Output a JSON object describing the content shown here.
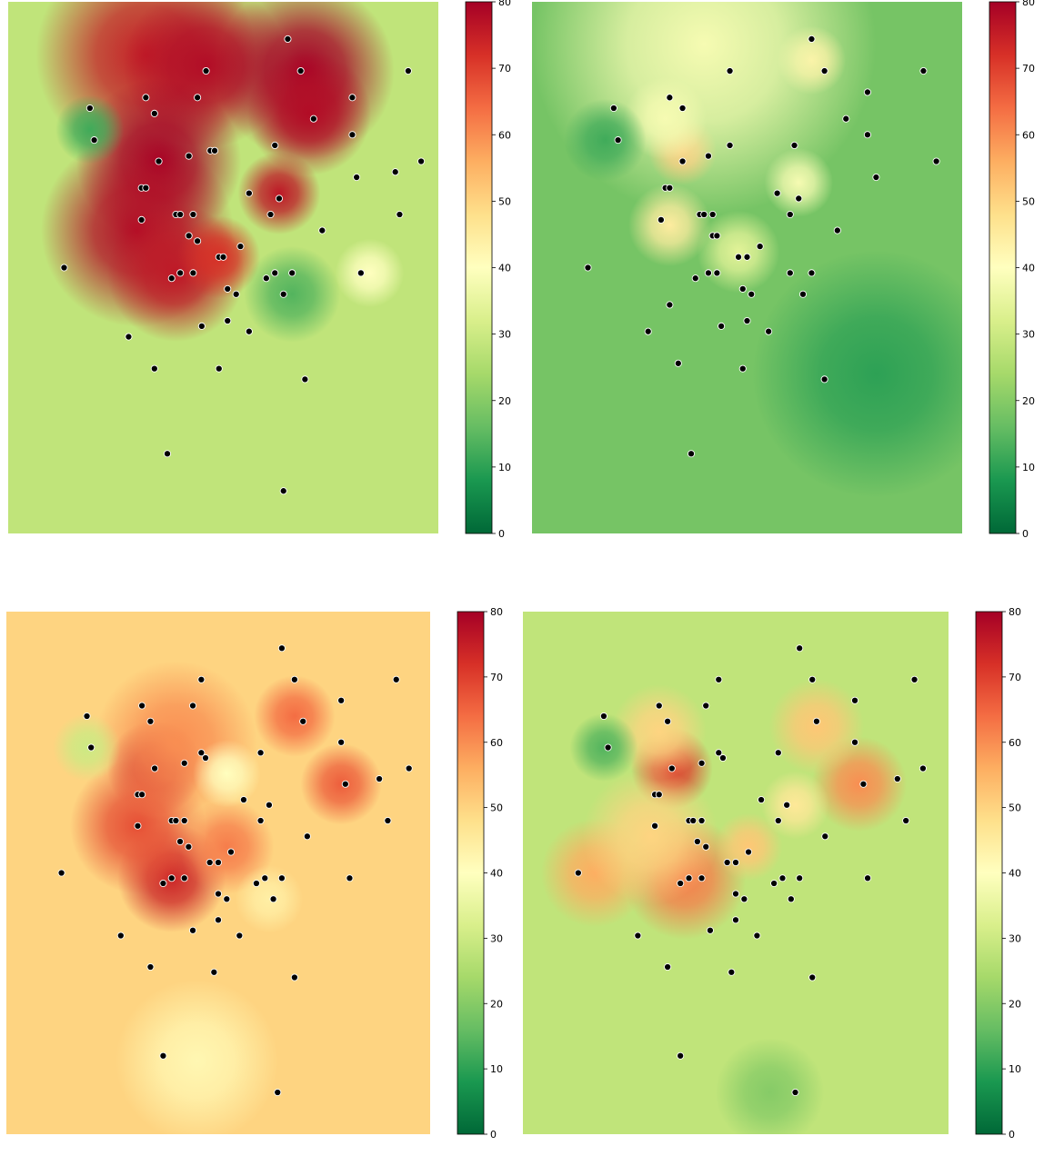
{
  "figure": {
    "colormap": "RdYlGn_r",
    "colorbar_ticks": [
      "0",
      "10",
      "20",
      "30",
      "40",
      "50",
      "60",
      "70",
      "80"
    ],
    "colorbar_range": [
      0,
      80
    ]
  },
  "chart_data": [
    {
      "type": "heatmap",
      "panel": "top-left",
      "title": "",
      "xlabel": "",
      "ylabel": "",
      "value_range": [
        0,
        80
      ],
      "background_value": 28,
      "hotspots": [
        {
          "x": 0.32,
          "y": 0.1,
          "v": 75,
          "r": 0.16
        },
        {
          "x": 0.46,
          "y": 0.12,
          "v": 78,
          "r": 0.12
        },
        {
          "x": 0.69,
          "y": 0.13,
          "v": 80,
          "r": 0.13
        },
        {
          "x": 0.7,
          "y": 0.21,
          "v": 78,
          "r": 0.09
        },
        {
          "x": 0.35,
          "y": 0.3,
          "v": 80,
          "r": 0.12
        },
        {
          "x": 0.63,
          "y": 0.36,
          "v": 76,
          "r": 0.06
        },
        {
          "x": 0.3,
          "y": 0.43,
          "v": 78,
          "r": 0.14
        },
        {
          "x": 0.39,
          "y": 0.51,
          "v": 76,
          "r": 0.1
        },
        {
          "x": 0.49,
          "y": 0.48,
          "v": 72,
          "r": 0.06
        },
        {
          "x": 0.19,
          "y": 0.24,
          "v": 12,
          "r": 0.05
        },
        {
          "x": 0.66,
          "y": 0.55,
          "v": 14,
          "r": 0.07
        },
        {
          "x": 0.84,
          "y": 0.51,
          "v": 40,
          "r": 0.05
        }
      ],
      "points": [
        [
          0.65,
          0.07
        ],
        [
          0.46,
          0.13
        ],
        [
          0.68,
          0.13
        ],
        [
          0.93,
          0.13
        ],
        [
          0.32,
          0.18
        ],
        [
          0.44,
          0.18
        ],
        [
          0.8,
          0.18
        ],
        [
          0.19,
          0.2
        ],
        [
          0.34,
          0.21
        ],
        [
          0.71,
          0.22
        ],
        [
          0.2,
          0.26
        ],
        [
          0.8,
          0.25
        ],
        [
          0.47,
          0.28
        ],
        [
          0.48,
          0.28
        ],
        [
          0.62,
          0.27
        ],
        [
          0.35,
          0.3
        ],
        [
          0.42,
          0.29
        ],
        [
          0.9,
          0.32
        ],
        [
          0.96,
          0.3
        ],
        [
          0.81,
          0.33
        ],
        [
          0.31,
          0.35
        ],
        [
          0.32,
          0.35
        ],
        [
          0.56,
          0.36
        ],
        [
          0.63,
          0.37
        ],
        [
          0.39,
          0.4
        ],
        [
          0.4,
          0.4
        ],
        [
          0.43,
          0.4
        ],
        [
          0.61,
          0.4
        ],
        [
          0.91,
          0.4
        ],
        [
          0.31,
          0.41
        ],
        [
          0.73,
          0.43
        ],
        [
          0.42,
          0.44
        ],
        [
          0.44,
          0.45
        ],
        [
          0.54,
          0.46
        ],
        [
          0.49,
          0.48
        ],
        [
          0.5,
          0.48
        ],
        [
          0.13,
          0.5
        ],
        [
          0.4,
          0.51
        ],
        [
          0.43,
          0.51
        ],
        [
          0.38,
          0.52
        ],
        [
          0.6,
          0.52
        ],
        [
          0.62,
          0.51
        ],
        [
          0.66,
          0.51
        ],
        [
          0.82,
          0.51
        ],
        [
          0.51,
          0.54
        ],
        [
          0.53,
          0.55
        ],
        [
          0.64,
          0.55
        ],
        [
          0.51,
          0.6
        ],
        [
          0.45,
          0.61
        ],
        [
          0.56,
          0.62
        ],
        [
          0.28,
          0.63
        ],
        [
          0.34,
          0.69
        ],
        [
          0.49,
          0.69
        ],
        [
          0.69,
          0.71
        ],
        [
          0.37,
          0.85
        ],
        [
          0.64,
          0.92
        ]
      ]
    },
    {
      "type": "heatmap",
      "panel": "top-right",
      "title": "",
      "xlabel": "",
      "ylabel": "",
      "value_range": [
        0,
        80
      ],
      "background_value": 18,
      "hotspots": [
        {
          "x": 0.35,
          "y": 0.28,
          "v": 55,
          "r": 0.05
        },
        {
          "x": 0.32,
          "y": 0.42,
          "v": 45,
          "r": 0.06
        },
        {
          "x": 0.31,
          "y": 0.22,
          "v": 38,
          "r": 0.06
        },
        {
          "x": 0.65,
          "y": 0.11,
          "v": 45,
          "r": 0.05
        },
        {
          "x": 0.4,
          "y": 0.08,
          "v": 38,
          "r": 0.25
        },
        {
          "x": 0.62,
          "y": 0.34,
          "v": 38,
          "r": 0.05
        },
        {
          "x": 0.48,
          "y": 0.47,
          "v": 34,
          "r": 0.06
        },
        {
          "x": 0.17,
          "y": 0.26,
          "v": 12,
          "r": 0.06
        },
        {
          "x": 0.8,
          "y": 0.7,
          "v": 10,
          "r": 0.18
        }
      ],
      "points": [
        [
          0.65,
          0.07
        ],
        [
          0.46,
          0.13
        ],
        [
          0.68,
          0.13
        ],
        [
          0.91,
          0.13
        ],
        [
          0.32,
          0.18
        ],
        [
          0.35,
          0.2
        ],
        [
          0.78,
          0.17
        ],
        [
          0.19,
          0.2
        ],
        [
          0.73,
          0.22
        ],
        [
          0.78,
          0.25
        ],
        [
          0.2,
          0.26
        ],
        [
          0.61,
          0.27
        ],
        [
          0.46,
          0.27
        ],
        [
          0.41,
          0.29
        ],
        [
          0.35,
          0.3
        ],
        [
          0.8,
          0.33
        ],
        [
          0.94,
          0.3
        ],
        [
          0.31,
          0.35
        ],
        [
          0.32,
          0.35
        ],
        [
          0.57,
          0.36
        ],
        [
          0.62,
          0.37
        ],
        [
          0.6,
          0.4
        ],
        [
          0.39,
          0.4
        ],
        [
          0.4,
          0.4
        ],
        [
          0.42,
          0.4
        ],
        [
          0.3,
          0.41
        ],
        [
          0.71,
          0.43
        ],
        [
          0.42,
          0.44
        ],
        [
          0.43,
          0.44
        ],
        [
          0.53,
          0.46
        ],
        [
          0.48,
          0.48
        ],
        [
          0.5,
          0.48
        ],
        [
          0.13,
          0.5
        ],
        [
          0.38,
          0.52
        ],
        [
          0.41,
          0.51
        ],
        [
          0.43,
          0.51
        ],
        [
          0.6,
          0.51
        ],
        [
          0.65,
          0.51
        ],
        [
          0.49,
          0.54
        ],
        [
          0.51,
          0.55
        ],
        [
          0.63,
          0.55
        ],
        [
          0.32,
          0.57
        ],
        [
          0.5,
          0.6
        ],
        [
          0.44,
          0.61
        ],
        [
          0.55,
          0.62
        ],
        [
          0.27,
          0.62
        ],
        [
          0.34,
          0.68
        ],
        [
          0.49,
          0.69
        ],
        [
          0.68,
          0.71
        ],
        [
          0.37,
          0.85
        ]
      ]
    },
    {
      "type": "heatmap",
      "panel": "bottom-left",
      "title": "",
      "xlabel": "",
      "ylabel": "",
      "value_range": [
        0,
        80
      ],
      "background_value": 50,
      "hotspots": [
        {
          "x": 0.35,
          "y": 0.3,
          "v": 75,
          "r": 0.07
        },
        {
          "x": 0.39,
          "y": 0.51,
          "v": 74,
          "r": 0.08
        },
        {
          "x": 0.31,
          "y": 0.41,
          "v": 68,
          "r": 0.1
        },
        {
          "x": 0.68,
          "y": 0.2,
          "v": 64,
          "r": 0.06
        },
        {
          "x": 0.79,
          "y": 0.33,
          "v": 66,
          "r": 0.06
        },
        {
          "x": 0.52,
          "y": 0.45,
          "v": 62,
          "r": 0.07
        },
        {
          "x": 0.4,
          "y": 0.25,
          "v": 60,
          "r": 0.12
        },
        {
          "x": 0.19,
          "y": 0.26,
          "v": 30,
          "r": 0.05
        },
        {
          "x": 0.52,
          "y": 0.31,
          "v": 40,
          "r": 0.05
        },
        {
          "x": 0.62,
          "y": 0.55,
          "v": 44,
          "r": 0.05
        },
        {
          "x": 0.45,
          "y": 0.86,
          "v": 42,
          "r": 0.12
        }
      ],
      "points": [
        [
          0.65,
          0.07
        ],
        [
          0.46,
          0.13
        ],
        [
          0.68,
          0.13
        ],
        [
          0.92,
          0.13
        ],
        [
          0.32,
          0.18
        ],
        [
          0.44,
          0.18
        ],
        [
          0.79,
          0.17
        ],
        [
          0.19,
          0.2
        ],
        [
          0.34,
          0.21
        ],
        [
          0.7,
          0.21
        ],
        [
          0.2,
          0.26
        ],
        [
          0.79,
          0.25
        ],
        [
          0.46,
          0.27
        ],
        [
          0.47,
          0.28
        ],
        [
          0.6,
          0.27
        ],
        [
          0.35,
          0.3
        ],
        [
          0.42,
          0.29
        ],
        [
          0.8,
          0.33
        ],
        [
          0.88,
          0.32
        ],
        [
          0.95,
          0.3
        ],
        [
          0.31,
          0.35
        ],
        [
          0.32,
          0.35
        ],
        [
          0.56,
          0.36
        ],
        [
          0.62,
          0.37
        ],
        [
          0.39,
          0.4
        ],
        [
          0.4,
          0.4
        ],
        [
          0.42,
          0.4
        ],
        [
          0.6,
          0.4
        ],
        [
          0.9,
          0.4
        ],
        [
          0.31,
          0.41
        ],
        [
          0.71,
          0.43
        ],
        [
          0.41,
          0.44
        ],
        [
          0.43,
          0.45
        ],
        [
          0.53,
          0.46
        ],
        [
          0.48,
          0.48
        ],
        [
          0.5,
          0.48
        ],
        [
          0.13,
          0.5
        ],
        [
          0.39,
          0.51
        ],
        [
          0.42,
          0.51
        ],
        [
          0.37,
          0.52
        ],
        [
          0.59,
          0.52
        ],
        [
          0.61,
          0.51
        ],
        [
          0.65,
          0.51
        ],
        [
          0.81,
          0.51
        ],
        [
          0.5,
          0.54
        ],
        [
          0.52,
          0.55
        ],
        [
          0.63,
          0.55
        ],
        [
          0.5,
          0.59
        ],
        [
          0.44,
          0.61
        ],
        [
          0.55,
          0.62
        ],
        [
          0.27,
          0.62
        ],
        [
          0.34,
          0.68
        ],
        [
          0.49,
          0.69
        ],
        [
          0.68,
          0.7
        ],
        [
          0.37,
          0.85
        ],
        [
          0.64,
          0.92
        ]
      ]
    },
    {
      "type": "heatmap",
      "panel": "bottom-right",
      "title": "",
      "xlabel": "",
      "ylabel": "",
      "value_range": [
        0,
        80
      ],
      "background_value": 28,
      "hotspots": [
        {
          "x": 0.35,
          "y": 0.3,
          "v": 70,
          "r": 0.06
        },
        {
          "x": 0.38,
          "y": 0.51,
          "v": 62,
          "r": 0.09
        },
        {
          "x": 0.17,
          "y": 0.5,
          "v": 56,
          "r": 0.08
        },
        {
          "x": 0.32,
          "y": 0.23,
          "v": 50,
          "r": 0.07
        },
        {
          "x": 0.79,
          "y": 0.33,
          "v": 60,
          "r": 0.07
        },
        {
          "x": 0.69,
          "y": 0.22,
          "v": 52,
          "r": 0.07
        },
        {
          "x": 0.53,
          "y": 0.45,
          "v": 52,
          "r": 0.05
        },
        {
          "x": 0.3,
          "y": 0.43,
          "v": 50,
          "r": 0.1
        },
        {
          "x": 0.64,
          "y": 0.37,
          "v": 46,
          "r": 0.05
        },
        {
          "x": 0.19,
          "y": 0.26,
          "v": 14,
          "r": 0.05
        },
        {
          "x": 0.58,
          "y": 0.92,
          "v": 20,
          "r": 0.08
        }
      ],
      "points": [
        [
          0.65,
          0.07
        ],
        [
          0.46,
          0.13
        ],
        [
          0.68,
          0.13
        ],
        [
          0.92,
          0.13
        ],
        [
          0.32,
          0.18
        ],
        [
          0.43,
          0.18
        ],
        [
          0.78,
          0.17
        ],
        [
          0.19,
          0.2
        ],
        [
          0.34,
          0.21
        ],
        [
          0.69,
          0.21
        ],
        [
          0.2,
          0.26
        ],
        [
          0.78,
          0.25
        ],
        [
          0.46,
          0.27
        ],
        [
          0.47,
          0.28
        ],
        [
          0.6,
          0.27
        ],
        [
          0.35,
          0.3
        ],
        [
          0.42,
          0.29
        ],
        [
          0.8,
          0.33
        ],
        [
          0.88,
          0.32
        ],
        [
          0.94,
          0.3
        ],
        [
          0.31,
          0.35
        ],
        [
          0.32,
          0.35
        ],
        [
          0.56,
          0.36
        ],
        [
          0.62,
          0.37
        ],
        [
          0.39,
          0.4
        ],
        [
          0.4,
          0.4
        ],
        [
          0.42,
          0.4
        ],
        [
          0.6,
          0.4
        ],
        [
          0.9,
          0.4
        ],
        [
          0.31,
          0.41
        ],
        [
          0.71,
          0.43
        ],
        [
          0.41,
          0.44
        ],
        [
          0.43,
          0.45
        ],
        [
          0.53,
          0.46
        ],
        [
          0.48,
          0.48
        ],
        [
          0.5,
          0.48
        ],
        [
          0.13,
          0.5
        ],
        [
          0.39,
          0.51
        ],
        [
          0.42,
          0.51
        ],
        [
          0.37,
          0.52
        ],
        [
          0.59,
          0.52
        ],
        [
          0.61,
          0.51
        ],
        [
          0.65,
          0.51
        ],
        [
          0.81,
          0.51
        ],
        [
          0.5,
          0.54
        ],
        [
          0.52,
          0.55
        ],
        [
          0.63,
          0.55
        ],
        [
          0.5,
          0.59
        ],
        [
          0.44,
          0.61
        ],
        [
          0.55,
          0.62
        ],
        [
          0.27,
          0.62
        ],
        [
          0.34,
          0.68
        ],
        [
          0.49,
          0.69
        ],
        [
          0.68,
          0.7
        ],
        [
          0.37,
          0.85
        ],
        [
          0.64,
          0.92
        ]
      ]
    }
  ]
}
